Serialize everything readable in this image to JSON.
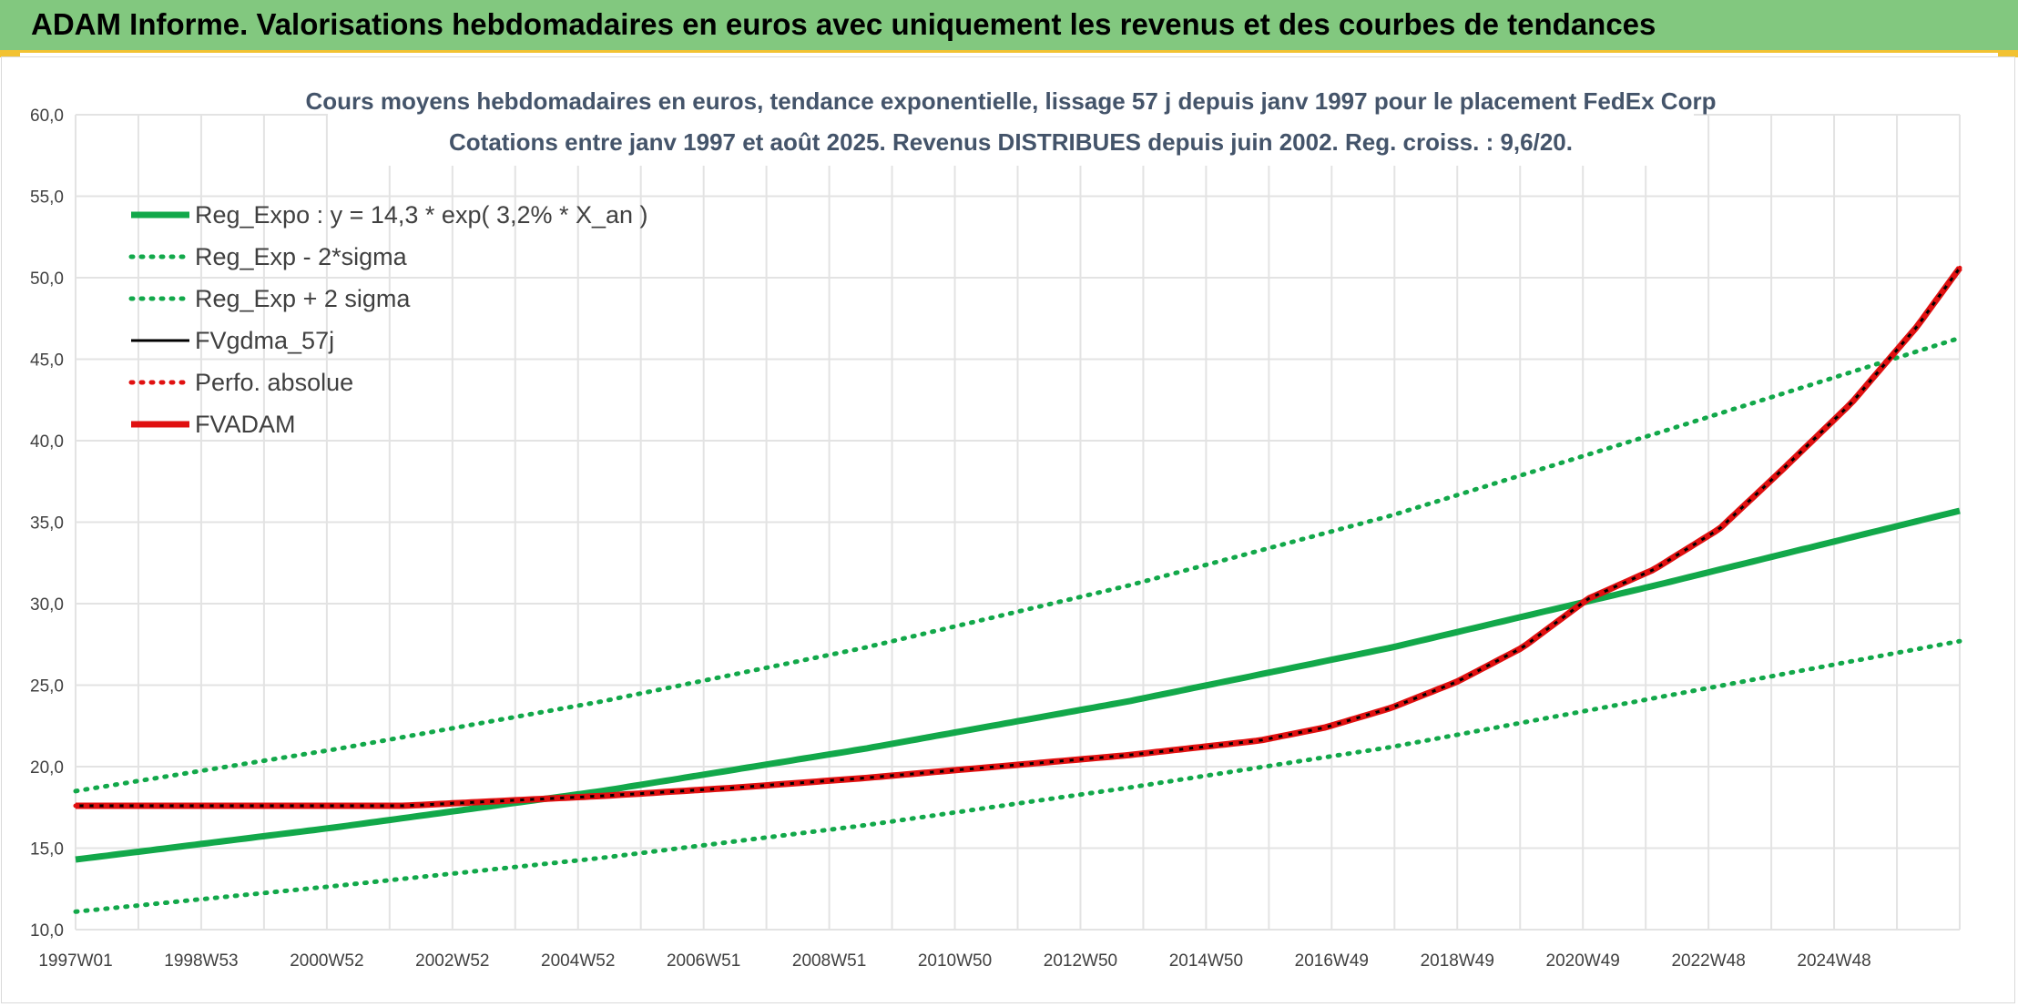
{
  "header": {
    "title": "ADAM Informe. Valorisations hebdomadaires en euros avec uniquement les revenus et des courbes de tendances"
  },
  "colors": {
    "green": "#12a84a",
    "red": "#e01010",
    "black": "#000000",
    "banner": "#82c87f",
    "accent": "#f2c232"
  },
  "chart_data": {
    "type": "line",
    "title": [
      "Cours moyens hebdomadaires en euros, tendance exponentielle, lissage 57 j depuis janv 1997 pour le placement FedEx Corp",
      "Cotations entre janv 1997 et août 2025. Revenus DISTRIBUES depuis juin 2002. Reg. croiss. : 9,6/20."
    ],
    "x_axis": {
      "tick_labels": [
        "1997W01",
        "1998W53",
        "2000W52",
        "2002W52",
        "2004W52",
        "2006W51",
        "2008W51",
        "2010W50",
        "2012W50",
        "2014W50",
        "2016W49",
        "2018W49",
        "2020W49",
        "2022W48",
        "2024W48"
      ],
      "range": [
        1997.0,
        2025.65
      ]
    },
    "y_axis": {
      "range": [
        10,
        60
      ],
      "tick_labels": [
        "10,0",
        "15,0",
        "20,0",
        "25,0",
        "30,0",
        "35,0",
        "40,0",
        "45,0",
        "50,0",
        "55,0",
        "60,0"
      ]
    },
    "grid": true,
    "legend_position": "top-left",
    "series": [
      {
        "name": "Reg_Expo : y = 14,3 * exp( 3,2% *  X_an )",
        "color": "#12a84a",
        "style": "solid",
        "x": [
          1997.0,
          2001.0,
          2005.0,
          2009.0,
          2013.0,
          2017.0,
          2021.0,
          2025.65
        ],
        "y": [
          14.3,
          16.3,
          18.5,
          21.1,
          24.0,
          27.3,
          31.1,
          35.7
        ]
      },
      {
        "name": "Reg_Exp - 2*sigma",
        "color": "#12a84a",
        "style": "dotted",
        "x": [
          1997.0,
          2001.0,
          2005.0,
          2009.0,
          2013.0,
          2017.0,
          2021.0,
          2025.65
        ],
        "y": [
          11.1,
          12.7,
          14.4,
          16.4,
          18.7,
          21.2,
          24.2,
          27.7
        ]
      },
      {
        "name": "Reg_Exp + 2 sigma",
        "color": "#12a84a",
        "style": "dotted",
        "x": [
          1997.0,
          2001.0,
          2005.0,
          2009.0,
          2013.0,
          2017.0,
          2021.0,
          2025.65
        ],
        "y": [
          18.5,
          21.1,
          24.0,
          27.3,
          31.1,
          35.4,
          40.4,
          46.3
        ]
      },
      {
        "name": "FVgdma_57j",
        "color": "#000000",
        "style": "solid",
        "x": [
          1997.0,
          2002.0,
          2003.0,
          2005.0,
          2007.0,
          2009.0,
          2011.0,
          2013.0,
          2015.0,
          2016.0,
          2017.0,
          2018.0,
          2019.0,
          2020.0,
          2021.0,
          2022.0,
          2023.0,
          2024.0,
          2025.0,
          2025.65
        ],
        "y": [
          17.6,
          17.6,
          17.8,
          18.2,
          18.7,
          19.3,
          20.0,
          20.7,
          21.6,
          22.4,
          23.6,
          25.2,
          27.3,
          30.3,
          32.1,
          34.6,
          38.4,
          42.3,
          47.0,
          50.6
        ]
      },
      {
        "name": "Perfo. absolue",
        "color": "#e01010",
        "style": "dotted",
        "x": [
          1997.0,
          2002.0,
          2003.0,
          2005.0,
          2007.0,
          2009.0,
          2011.0,
          2013.0,
          2015.0,
          2016.0,
          2017.0,
          2018.0,
          2019.0,
          2020.0,
          2021.0,
          2022.0,
          2023.0,
          2024.0,
          2025.0,
          2025.65
        ],
        "y": [
          17.6,
          17.6,
          17.8,
          18.2,
          18.7,
          19.3,
          20.0,
          20.7,
          21.6,
          22.4,
          23.6,
          25.2,
          27.3,
          30.3,
          32.1,
          34.6,
          38.4,
          42.3,
          47.0,
          50.6
        ]
      },
      {
        "name": "FVADAM",
        "color": "#e01010",
        "style": "solid",
        "x": [
          1997.0,
          2002.0,
          2003.0,
          2005.0,
          2007.0,
          2009.0,
          2011.0,
          2013.0,
          2015.0,
          2016.0,
          2017.0,
          2018.0,
          2019.0,
          2020.0,
          2021.0,
          2022.0,
          2023.0,
          2024.0,
          2025.0,
          2025.65
        ],
        "y": [
          17.6,
          17.6,
          17.8,
          18.2,
          18.7,
          19.3,
          20.0,
          20.7,
          21.6,
          22.4,
          23.6,
          25.2,
          27.3,
          30.3,
          32.1,
          34.6,
          38.4,
          42.3,
          47.0,
          50.6
        ]
      }
    ]
  }
}
